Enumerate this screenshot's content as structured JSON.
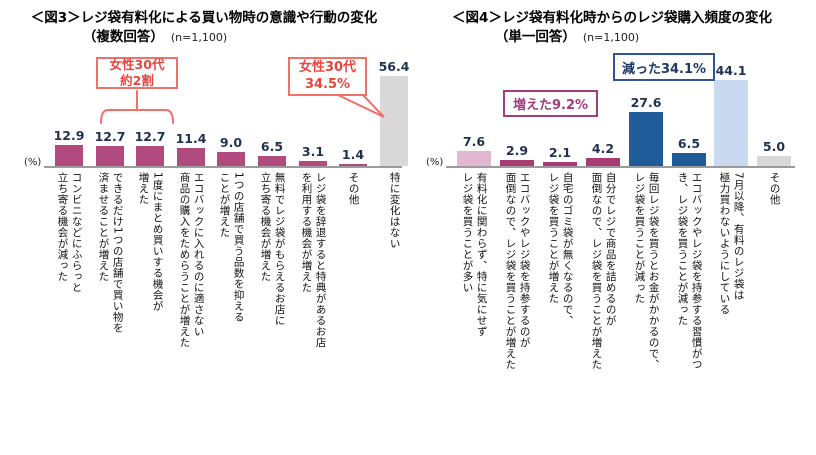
{
  "page": {
    "background": "#ffffff"
  },
  "chart_data": [
    {
      "type": "bar",
      "title": "＜図3＞レジ袋有料化による買い物時の意識や行動の変化",
      "subtitle": "（複数回答）",
      "sample_size": "(n=1,100)",
      "unit_label": "(%)",
      "ylim": [
        0,
        60
      ],
      "grid": false,
      "legend": "none",
      "categories": [
        "コンビニなどにふらっと立ち寄る機会が減った",
        "できるだけ1つの店舗で買い物を済ませることが増えた",
        "1度にまとめ買いする機会が増えた",
        "エコバックに入れるのに適さない商品の購入をためらうことが増えた",
        "1つの店舗で買う品数を抑えることが増えた",
        "無料でレジ袋がもらえるお店に立ち寄る機会が増えた",
        "レジ袋を辞退すると特典があるお店を利用する機会が増えた",
        "その他",
        "特に変化はない"
      ],
      "tick_labels": [
        "コンビニなどにふらっと\n立ち寄る機会が減った",
        "できるだけ1つの店舗で買い物を\n済ませることが増えた",
        "1度にまとめ買いする機会が\n増えた",
        "エコバックに入れるのに適さない\n商品の購入をためらうことが増えた",
        "1つの店舗で買う品数を抑える\nことが増えた",
        "無料でレジ袋がもらえるお店に\n立ち寄る機会が増えた",
        "レジ袋を辞退すると特典があるお店\nを利用する機会が増えた",
        "その他",
        "特に変化はない"
      ],
      "values": [
        12.9,
        12.7,
        12.7,
        11.4,
        9.0,
        6.5,
        3.1,
        1.4,
        56.4
      ],
      "value_labels": [
        "12.9",
        "12.7",
        "12.7",
        "11.4",
        "9.0",
        "6.5",
        "3.1",
        "1.4",
        "56.4"
      ],
      "bar_colors": [
        "#b14a7e",
        "#b14a7e",
        "#b14a7e",
        "#b14a7e",
        "#b14a7e",
        "#b14a7e",
        "#b14a7e",
        "#b14a7e",
        "#d9d9d9"
      ],
      "annotations": [
        {
          "id": "female-30s-group-note",
          "line1": "女性30代",
          "line2": "約2割",
          "text": "女性30代 約2割",
          "color": "#e8443e",
          "border_color": "#f2706a",
          "applies_to": [
            "できるだけ1つの店舗で買い物を済ませることが増えた",
            "1度にまとめ買いする機会が増えた"
          ]
        },
        {
          "id": "female-30s-callout",
          "line1": "女性30代",
          "line2": "34.5%",
          "text": "女性30代 34.5%",
          "color": "#e8443e",
          "border_color": "#f2706a",
          "applies_to": [
            "特に変化はない"
          ]
        }
      ]
    },
    {
      "type": "bar",
      "title": "＜図4＞レジ袋有料化時からのレジ袋購入頻度の変化",
      "subtitle": "（単一回答）",
      "sample_size": "(n=1,100)",
      "unit_label": "(%)",
      "ylim": [
        0,
        50
      ],
      "grid": false,
      "legend": "none",
      "categories": [
        "有料化に関わらず、特に気にせずレジ袋を買うことが多い",
        "エコバックやレジ袋を持参するのが面倒なので、レジ袋を買うことが増えた",
        "自宅のゴミ袋が無くなるので、レジ袋を買うことが増えた",
        "自分でレジで商品を詰めるのが面倒なので、レジ袋を買うことが増えた",
        "毎回レジ袋を買うとお金がかかるので、レジ袋を買うことが減った",
        "エコバックやレジ袋を持参する習慣がつき、レジ袋を買うことが減った",
        "7月以降、有料のレジ袋は極力買わないようにしている",
        "その他"
      ],
      "tick_labels": [
        "有料化に関わらず、特に気にせず\nレジ袋を買うことが多い",
        "エコバックやレジ袋を持参するのが\n面倒なので、レジ袋を買うことが増えた",
        "自宅のゴミ袋が無くなるので、\nレジ袋を買うことが増えた",
        "自分でレジで商品を詰めるのが\n面倒なので、レジ袋を買うことが増えた",
        "毎回レジ袋を買うとお金がかかるので、\nレジ袋を買うことが減った",
        "エコバックやレジ袋を持参する習慣がつ\nき、レジ袋を買うことが減った",
        "7月以降、有料のレジ袋は\n極力買わないようにしている",
        "その他"
      ],
      "values": [
        7.6,
        2.9,
        2.1,
        4.2,
        27.6,
        6.5,
        44.1,
        5.0
      ],
      "value_labels": [
        "7.6",
        "2.9",
        "2.1",
        "4.2",
        "27.6",
        "6.5",
        "44.1",
        "5.0"
      ],
      "bar_colors": [
        "#e3b7cf",
        "#a83a74",
        "#a83a74",
        "#a83a74",
        "#1f5c99",
        "#1f5c99",
        "#c9daf0",
        "#d9d9d9"
      ],
      "annotations": [
        {
          "id": "increased-note",
          "text": "増えた9.2%",
          "color": "#a43b7c",
          "border_color": "#a43b7c",
          "applies_to": [
            "エコバックやレジ袋を持参するのが面倒なので、レジ袋を買うことが増えた",
            "自宅のゴミ袋が無くなるので、レジ袋を買うことが増えた",
            "自分でレジで商品を詰めるのが面倒なので、レジ袋を買うことが増えた"
          ]
        },
        {
          "id": "decreased-note",
          "text": "減った34.1%",
          "color": "#1f3864",
          "border_color": "#2f5597",
          "applies_to": [
            "毎回レジ袋を買うとお金がかかるので、レジ袋を買うことが減った",
            "エコバックやレジ袋を持参する習慣がつき、レジ袋を買うことが減った"
          ]
        }
      ]
    }
  ]
}
